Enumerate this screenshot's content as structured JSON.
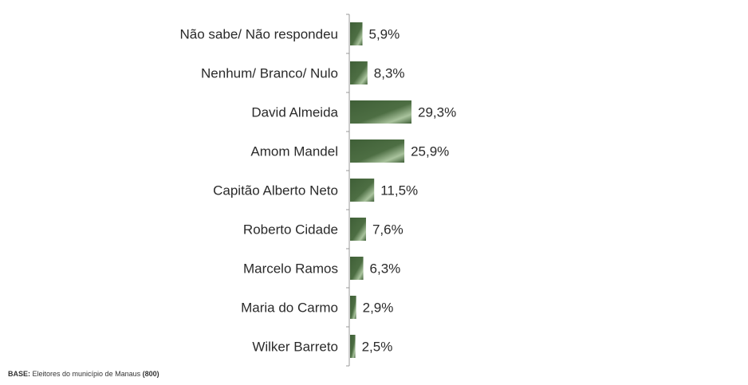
{
  "chart_data": {
    "type": "bar",
    "orientation": "horizontal",
    "categories": [
      "Não sabe/ Não respondeu",
      "Nenhum/ Branco/ Nulo",
      "David Almeida",
      "Amom Mandel",
      "Capitão Alberto Neto",
      "Roberto Cidade",
      "Marcelo Ramos",
      "Maria do Carmo",
      "Wilker Barreto"
    ],
    "values": [
      5.9,
      8.3,
      29.3,
      25.9,
      11.5,
      7.6,
      6.3,
      2.9,
      2.5
    ],
    "value_labels": [
      "5,9%",
      "8,3%",
      "29,3%",
      "25,9%",
      "11,5%",
      "7,6%",
      "6,3%",
      "2,9%",
      "2,5%"
    ],
    "title": "",
    "xlabel": "",
    "ylabel": "",
    "xlim": [
      0,
      29.3
    ],
    "grid": false,
    "legend": "none",
    "colors": {
      "bar_dark": "#3f5f37",
      "bar_light": "#b9cfae",
      "axis": "#999999"
    }
  },
  "footnote": {
    "prefix": "BASE:",
    "text": " Eleitores do município de Manaus ",
    "count": "(800)"
  }
}
